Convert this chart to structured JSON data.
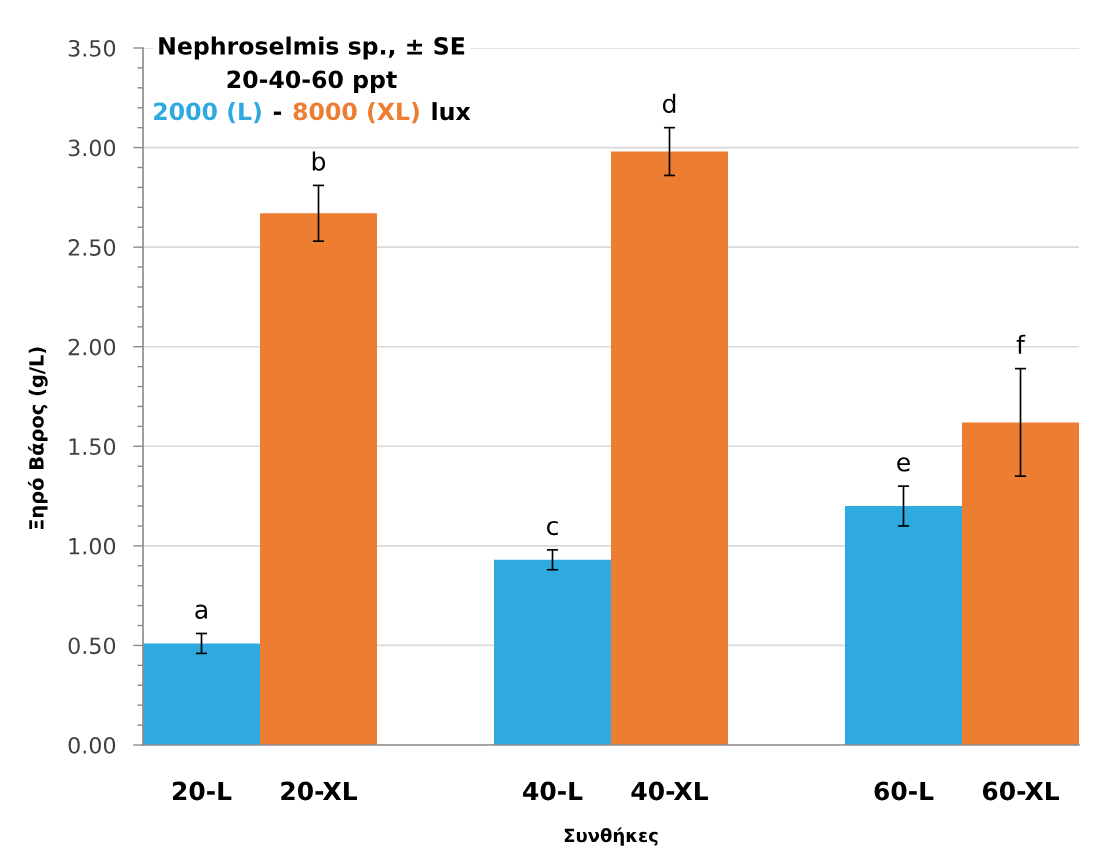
{
  "chart_data": {
    "type": "bar",
    "title": "Nephroselmis sp., ± SE",
    "subtitle": "20-40-60 ppt",
    "xlabel": "Συνθήκες",
    "ylabel": "Ξηρό Βάρος (g/L)",
    "categories": [
      "20-L",
      "20-XL",
      null,
      "40-L",
      "40-XL",
      null,
      "60-L",
      "60-XL"
    ],
    "series": [
      {
        "name": "2000 (L)",
        "color": "#2eaae1",
        "values": [
          0.51,
          null,
          null,
          0.93,
          null,
          null,
          1.2,
          null
        ],
        "errors": [
          0.05,
          null,
          null,
          0.05,
          null,
          null,
          0.1,
          null
        ]
      },
      {
        "name": "8000 (XL)",
        "color": "#ed7d31",
        "values": [
          null,
          2.67,
          null,
          null,
          2.98,
          null,
          null,
          1.62
        ],
        "errors": [
          null,
          0.14,
          null,
          null,
          0.12,
          null,
          null,
          0.27
        ]
      }
    ],
    "ylim": [
      0,
      3.5
    ],
    "yticks": [
      {
        "value": 0,
        "label": "0.00"
      },
      {
        "value": 0.5,
        "label": "0.50"
      },
      {
        "value": 1,
        "label": "1.00"
      },
      {
        "value": 1.5,
        "label": "1.50"
      },
      {
        "value": 2,
        "label": "2.00"
      },
      {
        "value": 2.5,
        "label": "2.50"
      },
      {
        "value": 3,
        "label": "3.00"
      },
      {
        "value": 3.5,
        "label": "3.50"
      }
    ],
    "grid": "y",
    "legend": "top left",
    "annotations": [
      {
        "text": "a",
        "x": "20-L",
        "y": 0.56
      },
      {
        "text": "b",
        "x": "20-XL",
        "y": 2.81
      },
      {
        "text": "c",
        "x": "40-L",
        "y": 0.98
      },
      {
        "text": "d",
        "x": "40-XL",
        "y": 3.1
      },
      {
        "text": "e",
        "x": "60-L",
        "y": 1.3
      },
      {
        "text": "f",
        "x": "60-XL",
        "y": 1.89
      },
      "-",
      "lux"
    ]
  }
}
